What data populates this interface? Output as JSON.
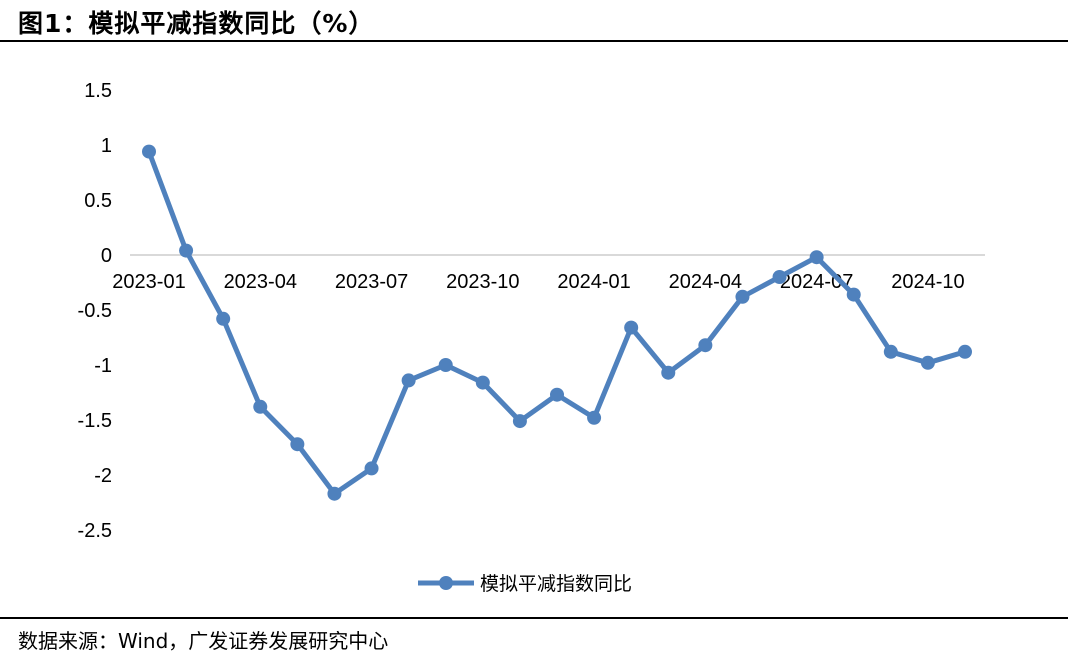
{
  "figure": {
    "title": "图1：模拟平减指数同比（%）",
    "source": "数据来源：Wind，广发证券发展研究中心"
  },
  "chart_data": {
    "type": "line",
    "title": "",
    "xlabel": "",
    "ylabel": "",
    "ylim": [
      -2.5,
      1.5
    ],
    "y_ticks": [
      "1.5",
      "1",
      "0.5",
      "0",
      "-0.5",
      "-1",
      "-1.5",
      "-2",
      "-2.5"
    ],
    "y_tick_values": [
      1.5,
      1,
      0.5,
      0,
      -0.5,
      -1,
      -1.5,
      -2,
      -2.5
    ],
    "x": [
      "2023-01",
      "2023-02",
      "2023-03",
      "2023-04",
      "2023-05",
      "2023-06",
      "2023-07",
      "2023-08",
      "2023-09",
      "2023-10",
      "2023-11",
      "2023-12",
      "2024-01",
      "2024-02",
      "2024-03",
      "2024-04",
      "2024-05",
      "2024-06",
      "2024-07",
      "2024-08",
      "2024-09",
      "2024-10",
      "2024-11"
    ],
    "x_tick_labels": [
      "2023-01",
      "2023-04",
      "2023-07",
      "2023-10",
      "2024-01",
      "2024-04",
      "2024-07",
      "2024-10"
    ],
    "series": [
      {
        "name": "模拟平减指数同比",
        "color": "#4f81bd",
        "values": [
          0.94,
          0.04,
          -0.58,
          -1.38,
          -1.72,
          -2.17,
          -1.94,
          -1.14,
          -1.0,
          -1.16,
          -1.51,
          -1.27,
          -1.48,
          -0.66,
          -1.07,
          -0.82,
          -0.38,
          -0.2,
          -0.02,
          -0.36,
          -0.88,
          -0.98,
          -0.88
        ]
      }
    ],
    "grid": false,
    "legend_position": "bottom"
  }
}
